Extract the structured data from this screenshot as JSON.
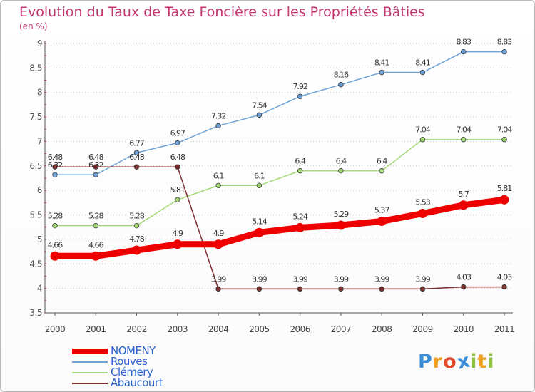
{
  "header": {
    "title": "Evolution du Taux de Taxe Foncière sur les Propriétés Bâties",
    "subtitle": "(en %)"
  },
  "chart_data": {
    "type": "line",
    "title": "Evolution du Taux de Taxe Foncière sur les Propriétés Bâties",
    "ylabel": "(en %)",
    "xlabel": "",
    "categories": [
      "2000",
      "2001",
      "2002",
      "2003",
      "2004",
      "2005",
      "2006",
      "2007",
      "2008",
      "2009",
      "2010",
      "2011"
    ],
    "ylim": [
      3.5,
      9
    ],
    "yticks": [
      3.5,
      4,
      4.5,
      5,
      5.5,
      6,
      6.5,
      7,
      7.5,
      8,
      8.5,
      9
    ],
    "ytick_labels": [
      "3.5",
      "4",
      "4.5",
      "5",
      "5.5",
      "6",
      "6.5",
      "7",
      "7.5",
      "8",
      "8.5",
      "9"
    ],
    "grid": "horizontal dotted",
    "legend_position": "bottom-left",
    "series": [
      {
        "name": "NOMENY",
        "color": "#ee0000",
        "emphasis": true,
        "values": [
          4.66,
          4.66,
          4.78,
          4.9,
          4.9,
          5.14,
          5.24,
          5.29,
          5.37,
          5.53,
          5.7,
          5.81
        ],
        "labels": [
          "4.66",
          "4.66",
          "4.78",
          "4.9",
          "4.9",
          "5.14",
          "5.24",
          "5.29",
          "5.37",
          "5.53",
          "5.7",
          "5.81"
        ]
      },
      {
        "name": "Rouves",
        "color": "#6fa3d8",
        "values": [
          6.32,
          6.32,
          6.77,
          6.97,
          7.32,
          7.54,
          7.92,
          8.16,
          8.41,
          8.41,
          8.83,
          8.83
        ],
        "labels": [
          "6.32",
          "6.32",
          "6.77",
          "6.97",
          "7.32",
          "7.54",
          "7.92",
          "8.16",
          "8.41",
          "8.41",
          "8.83",
          "8.83"
        ]
      },
      {
        "name": "Clémery",
        "color": "#a6d977",
        "values": [
          5.28,
          5.28,
          5.28,
          5.81,
          6.1,
          6.1,
          6.4,
          6.4,
          6.4,
          7.04,
          7.04,
          7.04
        ],
        "labels": [
          "5.28",
          "5.28",
          "5.28",
          "5.81",
          "6.1",
          "6.1",
          "6.4",
          "6.4",
          "6.4",
          "7.04",
          "7.04",
          "7.04"
        ]
      },
      {
        "name": "Abaucourt",
        "color": "#7b2f2f",
        "values": [
          6.48,
          6.48,
          6.48,
          6.48,
          3.99,
          3.99,
          3.99,
          3.99,
          3.99,
          3.99,
          4.03,
          4.03
        ],
        "labels": [
          "6.48",
          "6.48",
          "6.48",
          "6.48",
          "3.99",
          "3.99",
          "3.99",
          "3.99",
          "3.99",
          "3.99",
          "4.03",
          "4.03"
        ]
      }
    ]
  },
  "logo": {
    "letters": [
      "P",
      "r",
      "o",
      "x",
      "i",
      "t",
      "i"
    ],
    "colors": [
      "#3b8fd8",
      "#f0a21e",
      "#e04a2a",
      "#3b8fd8",
      "#8fc43a",
      "#f0a21e",
      "#8fc43a"
    ]
  }
}
